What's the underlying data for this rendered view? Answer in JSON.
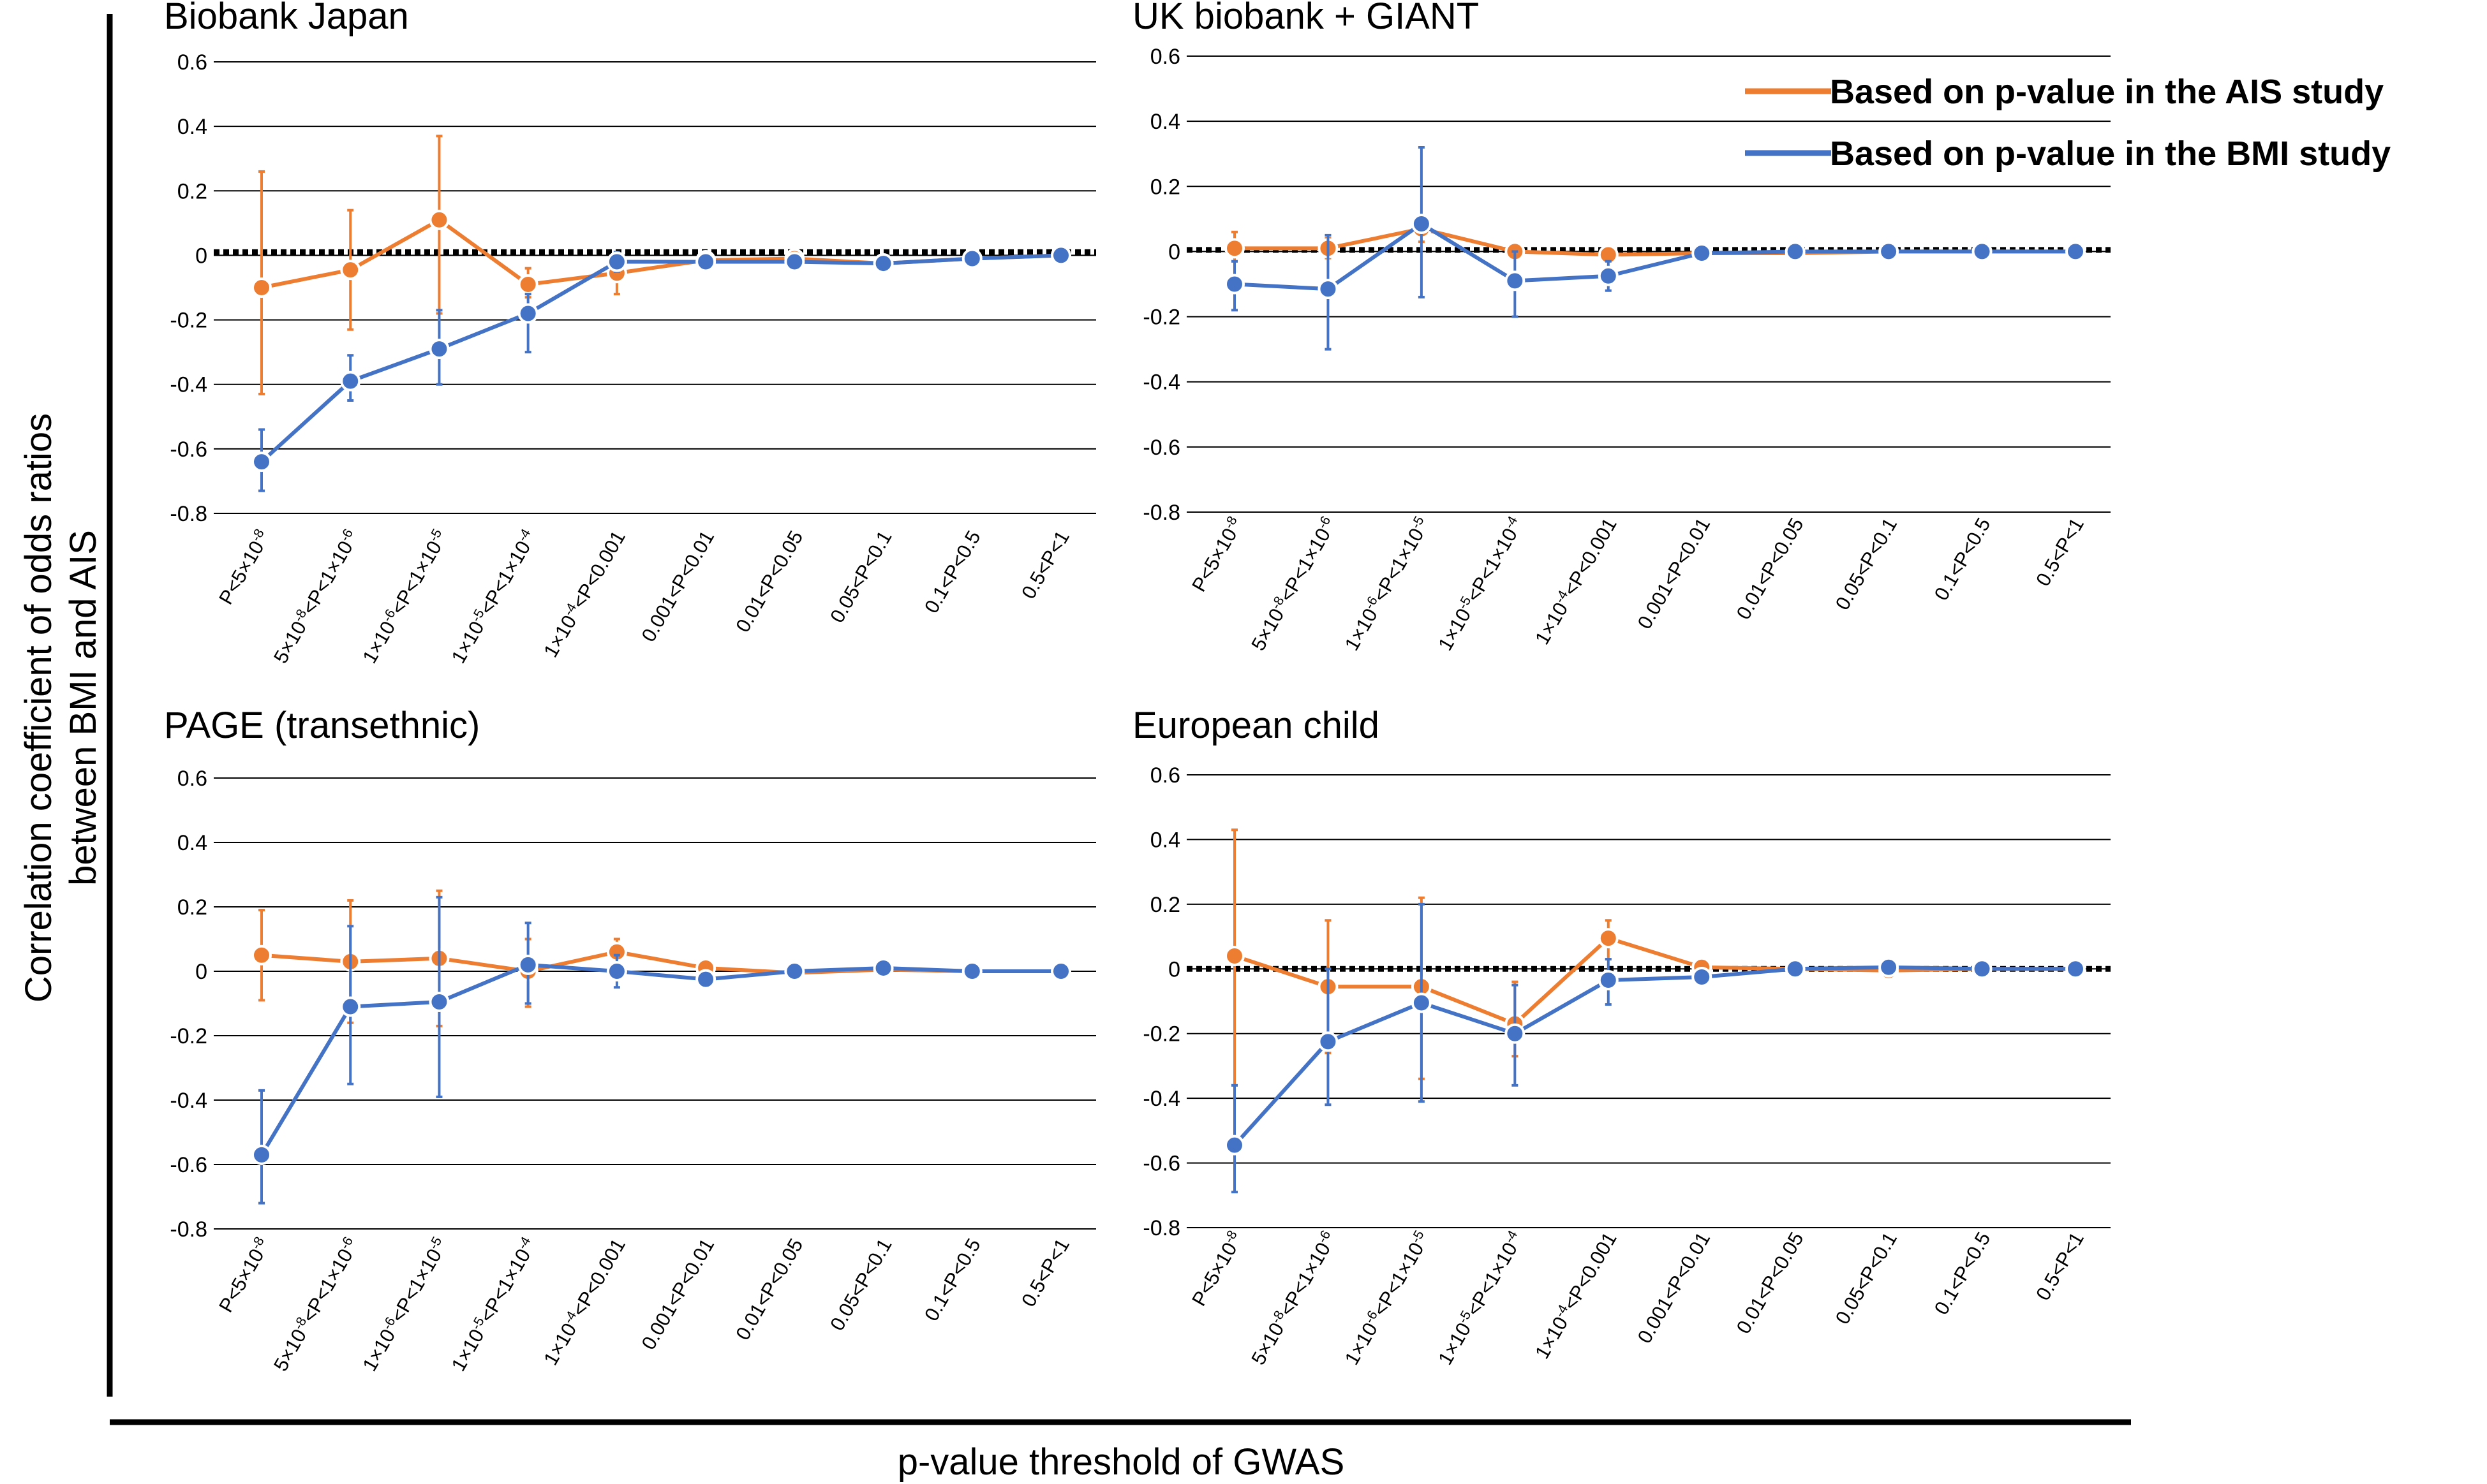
{
  "figure": {
    "y_axis_label_line1": "Correlation coefficient of odds ratios",
    "y_axis_label_line2": "between BMI and AIS",
    "x_axis_label": "p-value threshold of GWAS"
  },
  "legend": [
    {
      "label": "Based on p-value in the AIS study",
      "color": "#ED7D31"
    },
    {
      "label": "Based on p-value in the BMI study",
      "color": "#4472C4"
    }
  ],
  "colors": {
    "ais": "#ED7D31",
    "bmi": "#4472C4",
    "reference_line": "#000000",
    "grid": "#000000"
  },
  "chart_data": [
    {
      "type": "line",
      "title": "Biobank Japan",
      "ylim": [
        -0.8,
        0.6
      ],
      "yticks": [
        "0.6",
        "0.4",
        "0.2",
        "0",
        "-0.2",
        "-0.4",
        "-0.6",
        "-0.8"
      ],
      "reference_y": 0.01,
      "categories": [
        "P<5×10^-8",
        "5×10^-8<P<1×10^-6",
        "1×10^-6<P<1×10^-5",
        "1×10^-5<P<1×10^-4",
        "1×10^-4<P<0.001",
        "0.001<P<0.01",
        "0.01<P<0.05",
        "0.05<P<0.1",
        "0.1<P<0.5",
        "0.5<P<1"
      ],
      "series": [
        {
          "name": "Based on p-value in the AIS study",
          "color": "#ED7D31",
          "values": [
            -0.1,
            -0.045,
            0.11,
            -0.09,
            -0.055,
            -0.015,
            -0.01,
            -0.025,
            -0.01,
            0.0
          ],
          "err_low": [
            -0.43,
            -0.23,
            -0.18,
            -0.13,
            -0.12,
            -0.03,
            -0.02,
            -0.035,
            -0.02,
            -0.005
          ],
          "err_high": [
            0.26,
            0.14,
            0.37,
            -0.04,
            0.0,
            0.0,
            0.0,
            -0.015,
            0.0,
            0.005
          ]
        },
        {
          "name": "Based on p-value in the BMI study",
          "color": "#4472C4",
          "values": [
            -0.64,
            -0.39,
            -0.29,
            -0.18,
            -0.02,
            -0.02,
            -0.02,
            -0.025,
            -0.01,
            0.0
          ],
          "err_low": [
            -0.73,
            -0.45,
            -0.4,
            -0.3,
            -0.05,
            -0.03,
            -0.03,
            -0.035,
            -0.02,
            -0.005
          ],
          "err_high": [
            -0.54,
            -0.31,
            -0.17,
            -0.12,
            0.01,
            -0.01,
            -0.01,
            -0.015,
            0.0,
            0.005
          ]
        }
      ]
    },
    {
      "type": "line",
      "title": "UK biobank + GIANT",
      "ylim": [
        -0.8,
        0.6
      ],
      "yticks": [
        "0.6",
        "0.4",
        "0.2",
        "0",
        "-0.2",
        "-0.4",
        "-0.6",
        "-0.8"
      ],
      "reference_y": 0.005,
      "categories": [
        "P<5×10^-8",
        "5×10^-8<P<1×10^-6",
        "1×10^-6<P<1×10^-5",
        "1×10^-5<P<1×10^-4",
        "1×10^-4<P<0.001",
        "0.001<P<0.01",
        "0.01<P<0.05",
        "0.05<P<0.1",
        "0.1<P<0.5",
        "0.5<P<1"
      ],
      "series": [
        {
          "name": "Based on p-value in the AIS study",
          "color": "#ED7D31",
          "values": [
            0.01,
            0.01,
            0.07,
            0.0,
            -0.01,
            -0.005,
            -0.005,
            0.0,
            0.0,
            0.0
          ],
          "err_low": [
            -0.03,
            -0.02,
            0.03,
            -0.02,
            -0.03,
            -0.015,
            -0.01,
            -0.005,
            -0.005,
            -0.005
          ],
          "err_high": [
            0.06,
            0.04,
            0.11,
            0.02,
            0.01,
            0.005,
            0.0,
            0.005,
            0.005,
            0.005
          ]
        },
        {
          "name": "Based on p-value in the BMI study",
          "color": "#4472C4",
          "values": [
            -0.1,
            -0.115,
            0.085,
            -0.09,
            -0.075,
            -0.005,
            0.0,
            0.0,
            0.0,
            0.0
          ],
          "err_low": [
            -0.18,
            -0.3,
            -0.14,
            -0.2,
            -0.12,
            -0.015,
            -0.005,
            -0.005,
            -0.005,
            -0.005
          ],
          "err_high": [
            -0.03,
            0.05,
            0.32,
            0.0,
            -0.03,
            0.005,
            0.005,
            0.005,
            0.005,
            0.005
          ]
        }
      ]
    },
    {
      "type": "line",
      "title": "PAGE (transethnic)",
      "ylim": [
        -0.8,
        0.6
      ],
      "yticks": [
        "0.6",
        "0.4",
        "0.2",
        "0",
        "-0.2",
        "-0.4",
        "-0.6",
        "-0.8"
      ],
      "reference_y": null,
      "categories": [
        "P<5×10^-8",
        "5×10^-8<P<1×10^-6",
        "1×10^-6<P<1×10^-5",
        "1×10^-5<P<1×10^-4",
        "1×10^-4<P<0.001",
        "0.001<P<0.01",
        "0.01<P<0.05",
        "0.05<P<0.1",
        "0.1<P<0.5",
        "0.5<P<1"
      ],
      "series": [
        {
          "name": "Based on p-value in the AIS study",
          "color": "#ED7D31",
          "values": [
            0.05,
            0.03,
            0.04,
            0.0,
            0.06,
            0.01,
            -0.005,
            0.005,
            0.0,
            0.0
          ],
          "err_low": [
            -0.09,
            -0.16,
            -0.17,
            -0.11,
            0.02,
            0.0,
            -0.01,
            0.0,
            -0.005,
            -0.005
          ],
          "err_high": [
            0.19,
            0.22,
            0.25,
            0.1,
            0.1,
            0.02,
            0.0,
            0.01,
            0.005,
            0.005
          ]
        },
        {
          "name": "Based on p-value in the BMI study",
          "color": "#4472C4",
          "values": [
            -0.57,
            -0.11,
            -0.095,
            0.02,
            0.0,
            -0.025,
            0.0,
            0.01,
            0.0,
            0.0
          ],
          "err_low": [
            -0.72,
            -0.35,
            -0.39,
            -0.1,
            -0.05,
            -0.035,
            -0.01,
            0.0,
            -0.005,
            -0.005
          ],
          "err_high": [
            -0.37,
            0.14,
            0.23,
            0.15,
            0.05,
            -0.015,
            0.01,
            0.02,
            0.005,
            0.005
          ]
        }
      ]
    },
    {
      "type": "line",
      "title": "European child",
      "ylim": [
        -0.8,
        0.6
      ],
      "yticks": [
        "0.6",
        "0.4",
        "0.2",
        "0",
        "-0.2",
        "-0.4",
        "-0.6",
        "-0.8"
      ],
      "reference_y": 0.0,
      "categories": [
        "P<5×10^-8",
        "5×10^-8<P<1×10^-6",
        "1×10^-6<P<1×10^-5",
        "1×10^-5<P<1×10^-4",
        "1×10^-4<P<0.001",
        "0.001<P<0.01",
        "0.01<P<0.05",
        "0.05<P<0.1",
        "0.1<P<0.5",
        "0.5<P<1"
      ],
      "series": [
        {
          "name": "Based on p-value in the AIS study",
          "color": "#ED7D31",
          "values": [
            0.04,
            -0.055,
            -0.055,
            -0.17,
            0.095,
            0.005,
            0.0,
            -0.005,
            0.0,
            0.0
          ],
          "err_low": [
            -0.36,
            -0.26,
            -0.34,
            -0.27,
            0.03,
            -0.005,
            -0.005,
            -0.01,
            -0.005,
            -0.005
          ],
          "err_high": [
            0.43,
            0.15,
            0.22,
            -0.04,
            0.15,
            0.015,
            0.005,
            0.0,
            0.005,
            0.005
          ]
        },
        {
          "name": "Based on p-value in the BMI study",
          "color": "#4472C4",
          "values": [
            -0.545,
            -0.225,
            -0.105,
            -0.2,
            -0.035,
            -0.025,
            0.0,
            0.005,
            0.0,
            0.0
          ],
          "err_low": [
            -0.69,
            -0.42,
            -0.41,
            -0.36,
            -0.11,
            -0.05,
            -0.01,
            -0.005,
            -0.005,
            -0.005
          ],
          "err_high": [
            -0.36,
            0.0,
            0.2,
            -0.05,
            0.03,
            0.0,
            0.01,
            0.015,
            0.005,
            0.005
          ]
        }
      ]
    }
  ]
}
